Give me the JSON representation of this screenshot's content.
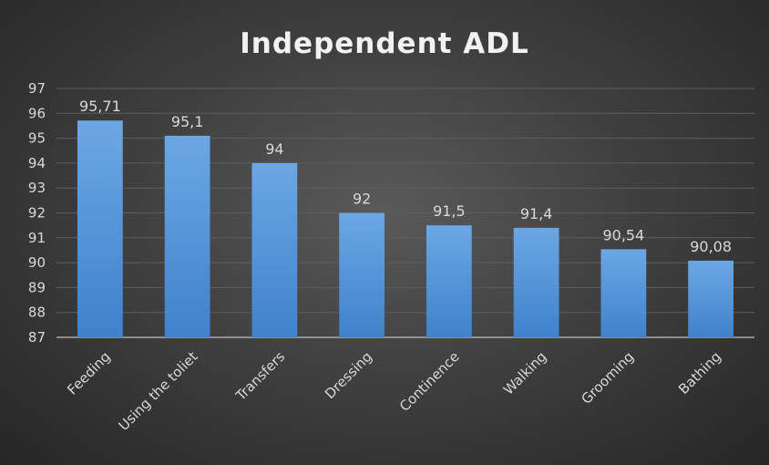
{
  "chart_data": {
    "type": "bar",
    "title": "Independent ADL",
    "categories": [
      "Feeding",
      "Using the toliet",
      "Transfers",
      "Dressing",
      "Continence",
      "Walking",
      "Grooming",
      "Bathing"
    ],
    "values": [
      95.71,
      95.1,
      94,
      92,
      91.5,
      91.4,
      90.54,
      90.08
    ],
    "data_labels": [
      "95,71",
      "95,1",
      "94",
      "92",
      "91,5",
      "91,4",
      "90,54",
      "90,08"
    ],
    "y_ticks": [
      87,
      88,
      89,
      90,
      91,
      92,
      93,
      94,
      95,
      96,
      97
    ],
    "ylim": [
      87,
      97
    ],
    "xlabel": "",
    "ylabel": "",
    "grid": true,
    "legend": "none",
    "bar_color_top": "#6ba7e3",
    "bar_color_bottom": "#3f82cc",
    "background_color": "#3a3a3a"
  }
}
